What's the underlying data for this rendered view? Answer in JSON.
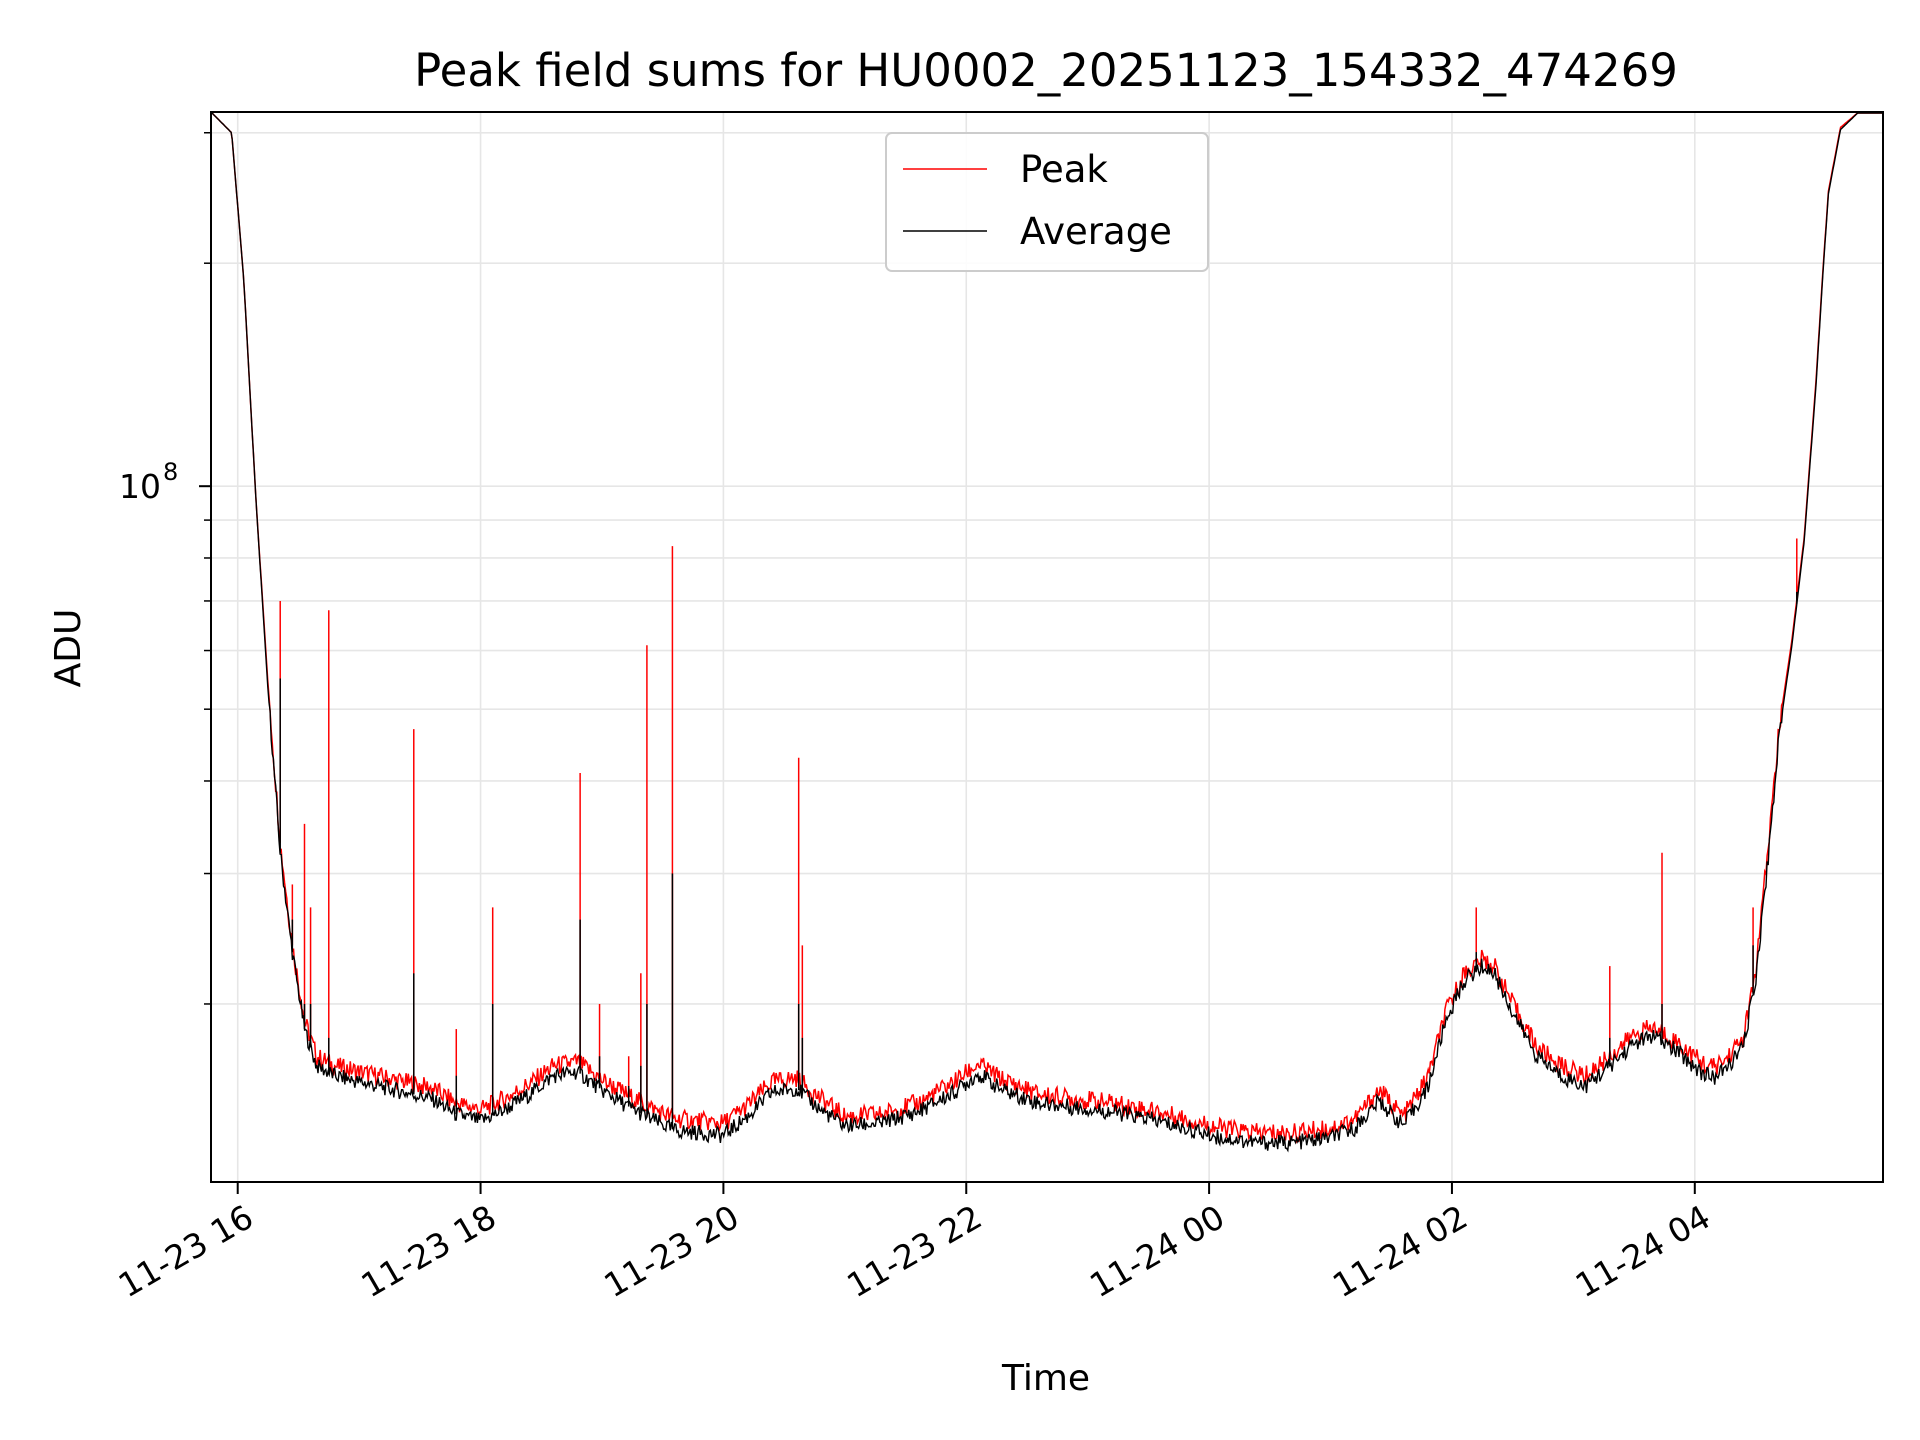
{
  "chart_data": {
    "type": "line",
    "title": "Peak field sums for HU0002_20251123_154332_474269",
    "xlabel": "Time",
    "ylabel": "ADU",
    "yscale": "log",
    "x_unit": "hours since 2025-11-23 00:00",
    "xlim": [
      15.78,
      29.55
    ],
    "ylim": [
      11500000.0,
      320000000.0
    ],
    "x_ticks": [
      {
        "value": 16,
        "label": "11-23 16"
      },
      {
        "value": 18,
        "label": "11-23 18"
      },
      {
        "value": 20,
        "label": "11-23 20"
      },
      {
        "value": 22,
        "label": "11-23 22"
      },
      {
        "value": 24,
        "label": "11-24 00"
      },
      {
        "value": 26,
        "label": "11-24 02"
      },
      {
        "value": 28,
        "label": "11-24 04"
      }
    ],
    "y_major_ticks": [
      {
        "value": 100000000,
        "base": "10",
        "exp": "8"
      }
    ],
    "y_minor_ticks": [
      20000000,
      30000000,
      40000000,
      50000000,
      60000000,
      70000000,
      80000000,
      90000000,
      200000000,
      300000000
    ],
    "grid": true,
    "legend_position": "top-center",
    "series": [
      {
        "name": "Peak",
        "color": "#ff0000",
        "x": [
          15.78,
          15.95,
          16.05,
          16.15,
          16.25,
          16.35,
          16.45,
          16.55,
          16.65,
          16.8,
          17.0,
          17.3,
          17.6,
          17.8,
          18.0,
          18.2,
          18.4,
          18.6,
          18.8,
          19.0,
          19.2,
          19.4,
          19.6,
          19.8,
          20.0,
          20.2,
          20.4,
          20.6,
          20.8,
          21.0,
          21.3,
          21.6,
          21.9,
          22.1,
          22.3,
          22.6,
          22.9,
          23.2,
          23.5,
          23.8,
          24.1,
          24.4,
          24.7,
          25.0,
          25.2,
          25.4,
          25.6,
          25.8,
          25.95,
          26.1,
          26.25,
          26.35,
          26.5,
          26.7,
          26.9,
          27.1,
          27.3,
          27.5,
          27.65,
          27.85,
          28.05,
          28.15,
          28.25,
          28.4,
          28.5,
          28.6,
          28.7,
          28.8,
          28.9,
          29.0,
          29.05,
          29.1,
          29.2,
          29.35,
          29.55
        ],
        "y": [
          320000000,
          300000000,
          190000000,
          96000000,
          54000000,
          33000000,
          24000000,
          19000000,
          17000000,
          16500000,
          16200000,
          15800000,
          15400000,
          14700000,
          14400000,
          14900000,
          15600000,
          16500000,
          16700000,
          15800000,
          15100000,
          14500000,
          14000000,
          13900000,
          13800000,
          14600000,
          15700000,
          15900000,
          14900000,
          14100000,
          14200000,
          14700000,
          15700000,
          16600000,
          15800000,
          15100000,
          14900000,
          14700000,
          14400000,
          14000000,
          13600000,
          13400000,
          13400000,
          13600000,
          14000000,
          15300000,
          14100000,
          15900000,
          19500000,
          22000000,
          23000000,
          22500000,
          20000000,
          17500000,
          16500000,
          16000000,
          17000000,
          18200000,
          18600000,
          17800000,
          16700000,
          16400000,
          16800000,
          18000000,
          22000000,
          32000000,
          48000000,
          62000000,
          85000000,
          140000000,
          190000000,
          250000000,
          305000000,
          320000000,
          320000000
        ]
      },
      {
        "name": "Average",
        "color": "#000000",
        "x": [
          15.78,
          15.95,
          16.05,
          16.15,
          16.25,
          16.35,
          16.45,
          16.55,
          16.65,
          16.8,
          17.0,
          17.3,
          17.6,
          17.8,
          18.0,
          18.2,
          18.4,
          18.6,
          18.8,
          19.0,
          19.2,
          19.4,
          19.6,
          19.8,
          20.0,
          20.2,
          20.4,
          20.6,
          20.8,
          21.0,
          21.3,
          21.6,
          21.9,
          22.1,
          22.3,
          22.6,
          22.9,
          23.2,
          23.5,
          23.8,
          24.1,
          24.4,
          24.7,
          25.0,
          25.2,
          25.4,
          25.6,
          25.8,
          25.95,
          26.1,
          26.25,
          26.35,
          26.5,
          26.7,
          26.9,
          27.1,
          27.3,
          27.5,
          27.65,
          27.85,
          28.05,
          28.15,
          28.25,
          28.4,
          28.5,
          28.6,
          28.7,
          28.8,
          28.9,
          29.0,
          29.05,
          29.1,
          29.2,
          29.35,
          29.55
        ],
        "y": [
          320000000,
          300000000,
          190000000,
          96000000,
          53000000,
          32000000,
          23500000,
          18500000,
          16500000,
          16000000,
          15700000,
          15300000,
          14900000,
          14200000,
          13900000,
          14400000,
          15100000,
          16000000,
          16200000,
          15300000,
          14600000,
          14000000,
          13500000,
          13400000,
          13300000,
          14100000,
          15200000,
          15400000,
          14400000,
          13700000,
          13800000,
          14300000,
          15200000,
          16100000,
          15300000,
          14700000,
          14500000,
          14300000,
          14000000,
          13600000,
          13200000,
          13000000,
          13000000,
          13200000,
          13600000,
          14800000,
          13700000,
          15400000,
          19000000,
          21500000,
          22500000,
          22000000,
          19500000,
          17000000,
          16000000,
          15500000,
          16500000,
          17700000,
          18100000,
          17300000,
          16200000,
          15900000,
          16300000,
          17500000,
          21500000,
          31000000,
          47000000,
          61000000,
          84000000,
          138000000,
          188000000,
          248000000,
          303000000,
          320000000,
          320000000
        ]
      }
    ],
    "spikes": [
      {
        "x": 16.35,
        "peak": 70000000,
        "avg": 55000000
      },
      {
        "x": 16.45,
        "peak": 29000000,
        "avg": 26000000
      },
      {
        "x": 16.55,
        "peak": 35000000,
        "avg": 20000000
      },
      {
        "x": 16.6,
        "peak": 27000000,
        "avg": 20000000
      },
      {
        "x": 16.75,
        "peak": 68000000,
        "avg": 18000000
      },
      {
        "x": 17.45,
        "peak": 47000000,
        "avg": 22000000
      },
      {
        "x": 17.8,
        "peak": 18500000,
        "avg": 16000000
      },
      {
        "x": 18.1,
        "peak": 27000000,
        "avg": 20000000
      },
      {
        "x": 18.82,
        "peak": 41000000,
        "avg": 26000000
      },
      {
        "x": 18.98,
        "peak": 20000000,
        "avg": 17000000
      },
      {
        "x": 19.22,
        "peak": 17000000,
        "avg": 15500000
      },
      {
        "x": 19.32,
        "peak": 22000000,
        "avg": 16500000
      },
      {
        "x": 19.37,
        "peak": 61000000,
        "avg": 20000000
      },
      {
        "x": 19.58,
        "peak": 83000000,
        "avg": 30000000
      },
      {
        "x": 20.62,
        "peak": 43000000,
        "avg": 20000000
      },
      {
        "x": 20.65,
        "peak": 24000000,
        "avg": 18000000
      },
      {
        "x": 26.2,
        "peak": 27000000,
        "avg": 23500000
      },
      {
        "x": 27.3,
        "peak": 22500000,
        "avg": 18000000
      },
      {
        "x": 27.73,
        "peak": 32000000,
        "avg": 20000000
      },
      {
        "x": 28.48,
        "peak": 27000000,
        "avg": 24000000
      },
      {
        "x": 28.84,
        "peak": 85000000,
        "avg": 72000000
      }
    ]
  },
  "legend": {
    "peak_label": "Peak",
    "average_label": "Average"
  }
}
